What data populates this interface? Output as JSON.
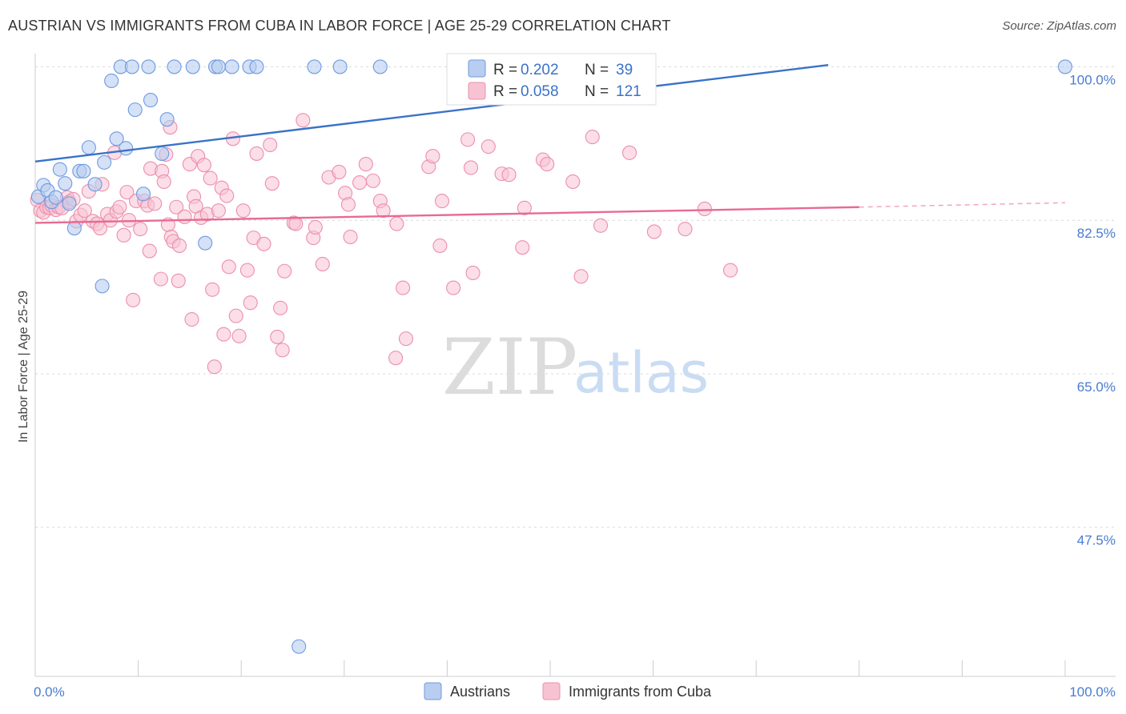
{
  "header": {
    "title": "AUSTRIAN VS IMMIGRANTS FROM CUBA IN LABOR FORCE | AGE 25-29 CORRELATION CHART",
    "source": "Source: ZipAtlas.com"
  },
  "watermark": {
    "zip": "ZIP",
    "atlas": "atlas"
  },
  "colors": {
    "blue_fill": "#b8cdf0",
    "blue_stroke": "#6f9ae0",
    "blue_line": "#3a72c8",
    "pink_fill": "#f7c3d3",
    "pink_stroke": "#ec8fac",
    "pink_line": "#e86a93",
    "grid": "#d9d9d9",
    "tick_label": "#4a7bd0"
  },
  "legend": {
    "r_label": "R =",
    "n_label": "N =",
    "rows": [
      {
        "series": "Austrians",
        "r": "0.202",
        "n": "39"
      },
      {
        "series": "Immigrants from Cuba",
        "r": "0.058",
        "n": "121"
      }
    ]
  },
  "chart_data": {
    "type": "scatter",
    "title": "AUSTRIAN VS IMMIGRANTS FROM CUBA IN LABOR FORCE | AGE 25-29 CORRELATION CHART",
    "xlabel": "",
    "ylabel": "In Labor Force | Age 25-29",
    "xlim": [
      0,
      100
    ],
    "ylim": [
      30.5,
      101.5
    ],
    "x_tick_labels": [
      "0.0%",
      "100.0%"
    ],
    "y_ticks": [
      100,
      82.5,
      65,
      47.5
    ],
    "y_tick_labels": [
      "100.0%",
      "82.5%",
      "65.0%",
      "47.5%"
    ],
    "grid": true,
    "legend_position": "top-center",
    "series": [
      {
        "name": "Austrians",
        "r": 0.202,
        "n": 39,
        "trend": {
          "x": [
            0,
            77
          ],
          "y": [
            89.2,
            100.2
          ]
        },
        "points": [
          [
            0.3,
            85.2
          ],
          [
            0.8,
            86.5
          ],
          [
            1.2,
            85.9
          ],
          [
            1.6,
            84.6
          ],
          [
            2.0,
            85.1
          ],
          [
            2.4,
            88.3
          ],
          [
            2.9,
            86.7
          ],
          [
            3.3,
            84.4
          ],
          [
            3.8,
            81.6
          ],
          [
            4.3,
            88.1
          ],
          [
            4.7,
            88.1
          ],
          [
            5.2,
            90.8
          ],
          [
            5.8,
            86.6
          ],
          [
            6.5,
            75.0
          ],
          [
            6.7,
            89.1
          ],
          [
            7.4,
            98.4
          ],
          [
            7.9,
            91.8
          ],
          [
            8.3,
            100.0
          ],
          [
            8.8,
            90.7
          ],
          [
            9.4,
            100.0
          ],
          [
            9.7,
            95.1
          ],
          [
            10.5,
            85.5
          ],
          [
            11.0,
            100.0
          ],
          [
            11.2,
            96.2
          ],
          [
            12.3,
            90.1
          ],
          [
            12.8,
            94.0
          ],
          [
            13.5,
            100.0
          ],
          [
            15.3,
            100.0
          ],
          [
            16.5,
            79.9
          ],
          [
            17.5,
            100.0
          ],
          [
            17.8,
            100.0
          ],
          [
            19.1,
            100.0
          ],
          [
            20.8,
            100.0
          ],
          [
            21.5,
            100.0
          ],
          [
            25.6,
            33.9
          ],
          [
            27.1,
            100.0
          ],
          [
            29.6,
            100.0
          ],
          [
            33.5,
            100.0
          ],
          [
            100.0,
            100.0
          ]
        ]
      },
      {
        "name": "Immigrants from Cuba",
        "r": 0.058,
        "n": 121,
        "trend": {
          "x": [
            0,
            80
          ],
          "y": [
            82.2,
            84.0
          ],
          "dashed_to": {
            "x": 100,
            "y": 84.5
          }
        },
        "points": [
          [
            0.2,
            84.8
          ],
          [
            0.5,
            83.6
          ],
          [
            0.8,
            83.4
          ],
          [
            1.1,
            84.0
          ],
          [
            1.4,
            83.9
          ],
          [
            1.6,
            84.2
          ],
          [
            2.0,
            83.7
          ],
          [
            2.3,
            84.0
          ],
          [
            2.6,
            83.9
          ],
          [
            3.1,
            85.1
          ],
          [
            3.3,
            84.6
          ],
          [
            3.7,
            84.9
          ],
          [
            4.0,
            82.4
          ],
          [
            4.4,
            83.1
          ],
          [
            4.8,
            83.6
          ],
          [
            5.2,
            85.8
          ],
          [
            5.6,
            82.4
          ],
          [
            6.0,
            82.1
          ],
          [
            6.3,
            81.6
          ],
          [
            6.5,
            86.6
          ],
          [
            7.0,
            83.2
          ],
          [
            7.3,
            82.5
          ],
          [
            7.7,
            90.2
          ],
          [
            7.9,
            83.5
          ],
          [
            8.2,
            84.0
          ],
          [
            8.6,
            80.8
          ],
          [
            8.9,
            85.7
          ],
          [
            9.1,
            82.5
          ],
          [
            9.5,
            73.4
          ],
          [
            9.8,
            84.7
          ],
          [
            10.2,
            81.5
          ],
          [
            10.6,
            84.7
          ],
          [
            10.9,
            84.2
          ],
          [
            11.1,
            79.0
          ],
          [
            11.2,
            88.4
          ],
          [
            11.6,
            84.4
          ],
          [
            12.2,
            75.8
          ],
          [
            12.3,
            88.1
          ],
          [
            12.5,
            86.9
          ],
          [
            12.7,
            90.0
          ],
          [
            12.9,
            82.0
          ],
          [
            13.1,
            93.1
          ],
          [
            13.2,
            80.6
          ],
          [
            13.4,
            80.1
          ],
          [
            13.7,
            84.0
          ],
          [
            13.9,
            75.6
          ],
          [
            14.0,
            79.6
          ],
          [
            14.5,
            82.9
          ],
          [
            15.0,
            88.9
          ],
          [
            15.2,
            71.2
          ],
          [
            15.4,
            85.2
          ],
          [
            15.6,
            84.1
          ],
          [
            15.8,
            89.8
          ],
          [
            16.1,
            82.8
          ],
          [
            16.4,
            88.8
          ],
          [
            16.7,
            83.2
          ],
          [
            17.0,
            87.3
          ],
          [
            17.2,
            74.6
          ],
          [
            17.4,
            65.8
          ],
          [
            17.8,
            83.6
          ],
          [
            18.1,
            86.2
          ],
          [
            18.3,
            69.5
          ],
          [
            18.6,
            85.3
          ],
          [
            18.8,
            77.2
          ],
          [
            19.2,
            91.8
          ],
          [
            19.5,
            71.6
          ],
          [
            19.8,
            69.3
          ],
          [
            20.2,
            83.6
          ],
          [
            20.6,
            76.8
          ],
          [
            20.9,
            73.1
          ],
          [
            21.2,
            80.5
          ],
          [
            21.5,
            90.1
          ],
          [
            22.2,
            79.8
          ],
          [
            22.8,
            91.1
          ],
          [
            23.0,
            86.7
          ],
          [
            23.5,
            69.2
          ],
          [
            23.8,
            72.5
          ],
          [
            24.0,
            67.7
          ],
          [
            24.2,
            76.7
          ],
          [
            25.1,
            82.2
          ],
          [
            25.3,
            82.1
          ],
          [
            26.0,
            93.9
          ],
          [
            27.0,
            80.5
          ],
          [
            27.2,
            81.7
          ],
          [
            27.9,
            77.5
          ],
          [
            28.5,
            87.4
          ],
          [
            29.5,
            88.0
          ],
          [
            30.1,
            85.6
          ],
          [
            30.4,
            84.3
          ],
          [
            30.6,
            80.6
          ],
          [
            31.5,
            86.8
          ],
          [
            32.1,
            88.9
          ],
          [
            32.8,
            87.0
          ],
          [
            33.5,
            84.7
          ],
          [
            33.8,
            83.6
          ],
          [
            35.1,
            82.1
          ],
          [
            35.7,
            74.8
          ],
          [
            36.0,
            69.0
          ],
          [
            35.0,
            66.8
          ],
          [
            38.2,
            88.6
          ],
          [
            38.6,
            89.8
          ],
          [
            39.3,
            79.6
          ],
          [
            39.5,
            84.7
          ],
          [
            40.6,
            74.8
          ],
          [
            42.0,
            91.7
          ],
          [
            42.3,
            88.5
          ],
          [
            42.5,
            76.5
          ],
          [
            44.0,
            90.9
          ],
          [
            45.3,
            87.8
          ],
          [
            46.0,
            87.7
          ],
          [
            47.3,
            79.4
          ],
          [
            47.5,
            83.9
          ],
          [
            49.3,
            89.4
          ],
          [
            49.7,
            88.9
          ],
          [
            52.2,
            86.9
          ],
          [
            53.0,
            76.1
          ],
          [
            54.1,
            92.0
          ],
          [
            54.9,
            81.9
          ],
          [
            57.7,
            90.2
          ],
          [
            60.1,
            81.2
          ],
          [
            63.1,
            81.5
          ],
          [
            65.0,
            83.8
          ],
          [
            67.5,
            76.8
          ]
        ]
      }
    ]
  },
  "bottom_legend": [
    {
      "series": "Austrians"
    },
    {
      "series": "Immigrants from Cuba"
    }
  ]
}
